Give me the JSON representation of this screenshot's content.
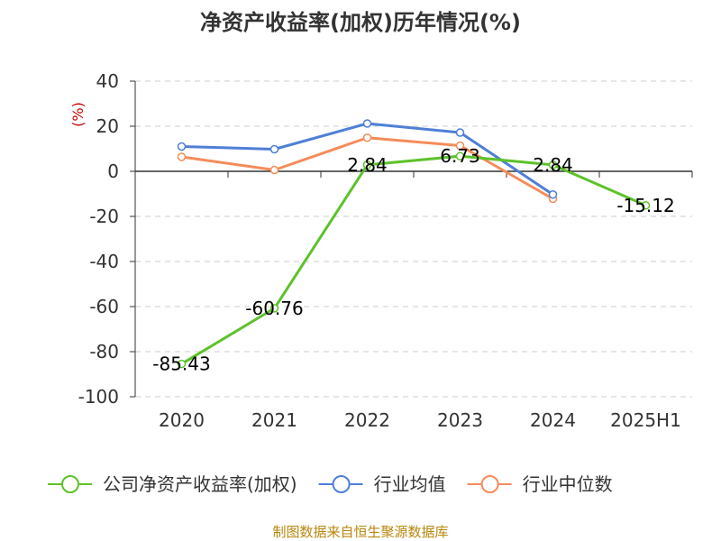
{
  "chart_data": {
    "type": "line",
    "title": "净资产收益率(加权)历年情况(%)",
    "ylabel": "(%)",
    "categories": [
      "2020",
      "2021",
      "2022",
      "2023",
      "2024",
      "2025H1"
    ],
    "ylim": [
      -100,
      40
    ],
    "yticks": [
      40,
      20,
      0,
      -20,
      -40,
      -60,
      -80,
      -100
    ],
    "grid": true,
    "legend_position": "bottom",
    "series": [
      {
        "name": "公司净资产收益率(加权)",
        "color": "#5dc22a",
        "values": [
          -85.43,
          -60.76,
          2.84,
          6.73,
          2.84,
          -15.12
        ],
        "labels": [
          "-85.43",
          "-60.76",
          "2.84",
          "6.73",
          "2.84",
          "-15.12"
        ]
      },
      {
        "name": "行业均值",
        "color": "#4f7fd6",
        "values": [
          11.0,
          9.8,
          21.2,
          17.2,
          -10.3,
          null
        ]
      },
      {
        "name": "行业中位数",
        "color": "#f58c5a",
        "values": [
          6.4,
          0.6,
          14.9,
          11.4,
          -12.2,
          null
        ]
      }
    ]
  },
  "source_note": "制图数据来自恒生聚源数据库"
}
